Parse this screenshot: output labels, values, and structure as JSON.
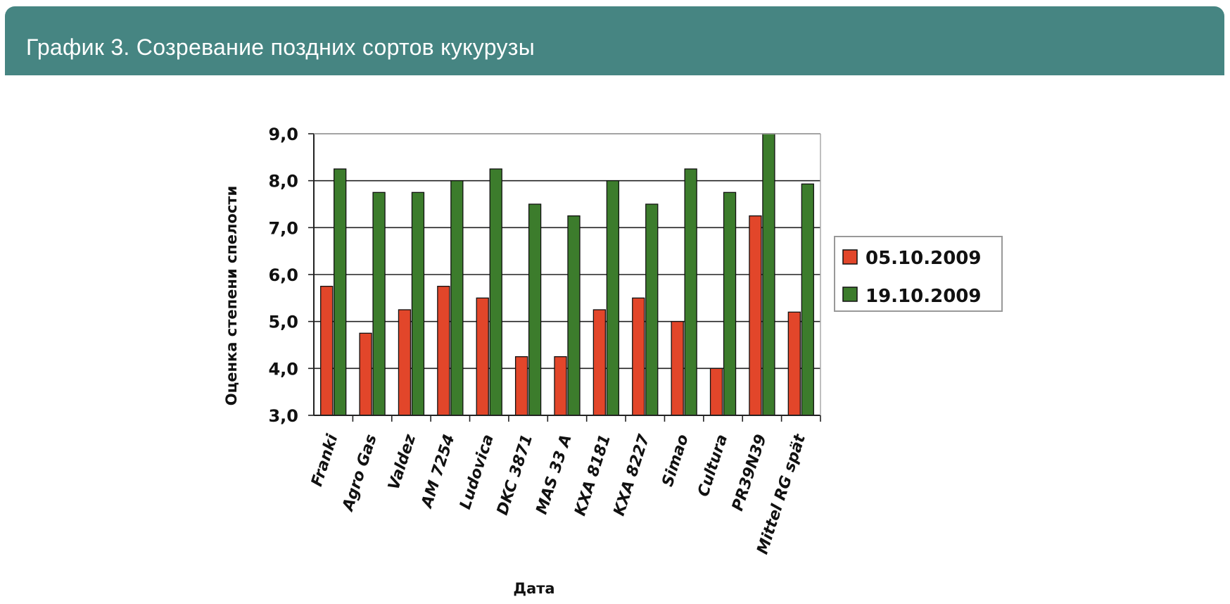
{
  "header": {
    "title": "График 3. Созревание поздних сортов кукурузы"
  },
  "colors": {
    "header_bg": "#468582",
    "series1": "#e2462a",
    "series2": "#3c7c2c"
  },
  "chart_data": {
    "type": "bar",
    "title": "",
    "xlabel": "Дата",
    "ylabel": "Оценка степени спелости",
    "ylim": [
      3.0,
      9.0
    ],
    "yticks": [
      "3,0",
      "4,0",
      "5,0",
      "6,0",
      "7,0",
      "8,0",
      "9,0"
    ],
    "grid": true,
    "legend_position": "right",
    "categories": [
      "Franki",
      "Agro Gas",
      "Valdez",
      "AM 7254",
      "Ludovica",
      "DKC 3871",
      "MAS 33 A",
      "KXA 8181",
      "KXA 8227",
      "Simao",
      "Cultura",
      "PR39N39",
      "Mittel RG spät"
    ],
    "series": [
      {
        "name": "05.10.2009",
        "color": "#e2462a",
        "values": [
          5.75,
          4.75,
          5.25,
          5.75,
          5.5,
          4.25,
          4.25,
          5.25,
          5.5,
          5.0,
          4.0,
          7.25,
          5.2
        ]
      },
      {
        "name": "19.10.2009",
        "color": "#3c7c2c",
        "values": [
          8.25,
          7.75,
          7.75,
          8.0,
          8.25,
          7.5,
          7.25,
          8.0,
          7.5,
          8.25,
          7.75,
          9.0,
          7.93
        ]
      }
    ]
  }
}
